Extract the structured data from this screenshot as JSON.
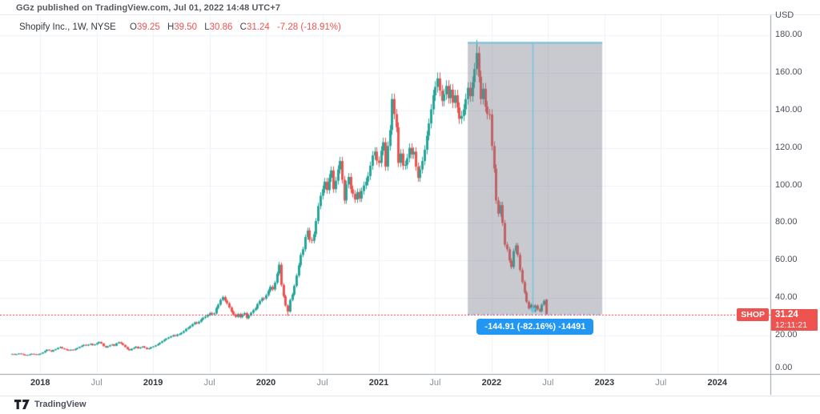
{
  "header": {
    "published_text": "GGz published on TradingView.com, Jul 01, 2022 14:48 UTC+7"
  },
  "legend": {
    "symbol_title": "Shopify Inc., 1W, NYSE",
    "open_label": "O",
    "open": "39.25",
    "high_label": "H",
    "high": "39.50",
    "low_label": "L",
    "low": "30.86",
    "close_label": "C",
    "close": "31.24",
    "change": "-7.28 (-18.91%)"
  },
  "price_scale": {
    "currency": "USD",
    "ticks": [
      {
        "label": "180.00",
        "value": 180
      },
      {
        "label": "160.00",
        "value": 160
      },
      {
        "label": "140.00",
        "value": 140
      },
      {
        "label": "120.00",
        "value": 120
      },
      {
        "label": "100.00",
        "value": 100
      },
      {
        "label": "80.00",
        "value": 80
      },
      {
        "label": "60.00",
        "value": 60
      },
      {
        "label": "40.00",
        "value": 40
      },
      {
        "label": "20.00",
        "value": 20
      },
      {
        "label": "0.00",
        "value": 0
      }
    ]
  },
  "last_price": {
    "symbol_badge": "SHOP",
    "price": "31.24",
    "countdown": "12:11:21",
    "value": 31.24,
    "color": "#ef5350"
  },
  "time_scale": {
    "ticks": [
      {
        "label": "2018",
        "week": 13,
        "major": true
      },
      {
        "label": "Jul",
        "week": 39,
        "major": false
      },
      {
        "label": "2019",
        "week": 65,
        "major": true
      },
      {
        "label": "Jul",
        "week": 91,
        "major": false
      },
      {
        "label": "2020",
        "week": 117,
        "major": true
      },
      {
        "label": "Jul",
        "week": 143,
        "major": false
      },
      {
        "label": "2021",
        "week": 169,
        "major": true
      },
      {
        "label": "Jul",
        "week": 195,
        "major": false
      },
      {
        "label": "2022",
        "week": 221,
        "major": true
      },
      {
        "label": "Jul",
        "week": 247,
        "major": false
      },
      {
        "label": "2023",
        "week": 273,
        "major": true
      },
      {
        "label": "Jul",
        "week": 299,
        "major": false
      },
      {
        "label": "2024",
        "week": 325,
        "major": true
      }
    ]
  },
  "measure": {
    "tooltip_text": "-144.91 (-82.16%) -14491",
    "price_change": -144.91,
    "percent_change": -82.16,
    "start_week": 210,
    "end_week": 272,
    "line_week": 240,
    "top_price": 176.4,
    "bottom_price": 31.3,
    "line_color": "#72c1dd",
    "fill_color": "rgba(120,123,134,0.40)"
  },
  "footer": {
    "brand": "TradingView"
  },
  "chart_data": {
    "type": "candlestick",
    "title": "Shopify Inc. weekly candlestick chart",
    "symbol": "SHOP",
    "exchange": "NYSE",
    "timeframe": "1W",
    "start": "2017-10",
    "end": "2022-07-01",
    "ylabel": "USD",
    "ylim": [
      0,
      191
    ],
    "grid": true,
    "up_color": "#26a69a",
    "down_color": "#ef5350",
    "current_price_line": 31.24,
    "first_open": 10.0,
    "closes": [
      10.2,
      9.9,
      10.1,
      10.5,
      10.2,
      9.8,
      9.5,
      9.7,
      10.0,
      10.3,
      10.1,
      9.9,
      10.1,
      10.4,
      11.0,
      11.8,
      12.5,
      12.1,
      11.5,
      12.3,
      12.8,
      13.5,
      13.9,
      13.2,
      12.8,
      12.4,
      12.1,
      12.5,
      12.3,
      12.9,
      13.4,
      14.0,
      14.6,
      15.1,
      14.7,
      15.2,
      15.6,
      14.9,
      15.3,
      16.0,
      16.6,
      15.8,
      14.4,
      13.7,
      14.3,
      14.9,
      15.3,
      14.6,
      15.9,
      16.5,
      15.8,
      15.0,
      13.9,
      12.8,
      12.2,
      13.0,
      13.5,
      14.1,
      13.2,
      13.7,
      14.2,
      13.6,
      12.8,
      13.2,
      13.8,
      14.2,
      14.8,
      15.4,
      16.2,
      17.0,
      17.8,
      18.4,
      19.0,
      19.6,
      20.2,
      19.8,
      20.6,
      20.8,
      21.5,
      22.4,
      23.6,
      24.2,
      25.0,
      26.1,
      27.0,
      26.5,
      27.4,
      28.6,
      29.5,
      30.1,
      31.0,
      32.0,
      31.4,
      31.8,
      34.7,
      36.5,
      39.0,
      40.5,
      38.6,
      37.2,
      35.0,
      32.8,
      31.2,
      30.0,
      31.5,
      29.8,
      31.2,
      32.0,
      29.3,
      30.8,
      32.2,
      33.6,
      34.5,
      36.8,
      38.5,
      39.8,
      39.7,
      41.5,
      43.8,
      46.0,
      44.6,
      48.2,
      53.0,
      57.8,
      47.0,
      41.0,
      36.0,
      32.8,
      39.0,
      41.9,
      46.5,
      52.0,
      57.5,
      63.0,
      66.0,
      72.5,
      76.0,
      71.0,
      70.5,
      74.0,
      81.0,
      89.0,
      94.5,
      98.0,
      102.0,
      97.5,
      104.0,
      108.0,
      98.0,
      102.5,
      108.5,
      113.0,
      103.0,
      92.0,
      100.5,
      104.5,
      98.0,
      95.5,
      92.5,
      96.5,
      93.0,
      97.0,
      100.0,
      102.0,
      105.0,
      110.5,
      116.0,
      118.0,
      113.2,
      112.0,
      118.5,
      123.0,
      110.0,
      121.0,
      129.5,
      146.0,
      138.0,
      131.0,
      112.0,
      117.0,
      110.5,
      111.0,
      114.5,
      120.0,
      116.5,
      118.0,
      110.0,
      104.0,
      108.5,
      113.0,
      119.0,
      126.5,
      133.0,
      140.5,
      148.0,
      152.5,
      157.0,
      150.5,
      145.0,
      148.5,
      153.0,
      146.5,
      151.0,
      144.0,
      148.0,
      141.5,
      135.5,
      137.0,
      140.5,
      146.0,
      152.0,
      147.5,
      155.0,
      162.0,
      170.5,
      158.0,
      146.0,
      151.5,
      142.0,
      138.0,
      137.8,
      121.0,
      109.0,
      92.0,
      85.0,
      89.5,
      80.0,
      68.5,
      66.0,
      60.0,
      56.5,
      65.0,
      68.0,
      63.0,
      55.0,
      48.5,
      43.0,
      38.0,
      34.5,
      36.5,
      33.0,
      36.0,
      34.0,
      33.0,
      36.5,
      38.5,
      31.24
    ],
    "overrides": {
      "123": {
        "high": 59.3
      },
      "127": {
        "low": 30.5
      },
      "214": {
        "high": 177.4
      },
      "246": {
        "open": 39.25,
        "high": 39.5,
        "low": 30.86
      }
    }
  }
}
